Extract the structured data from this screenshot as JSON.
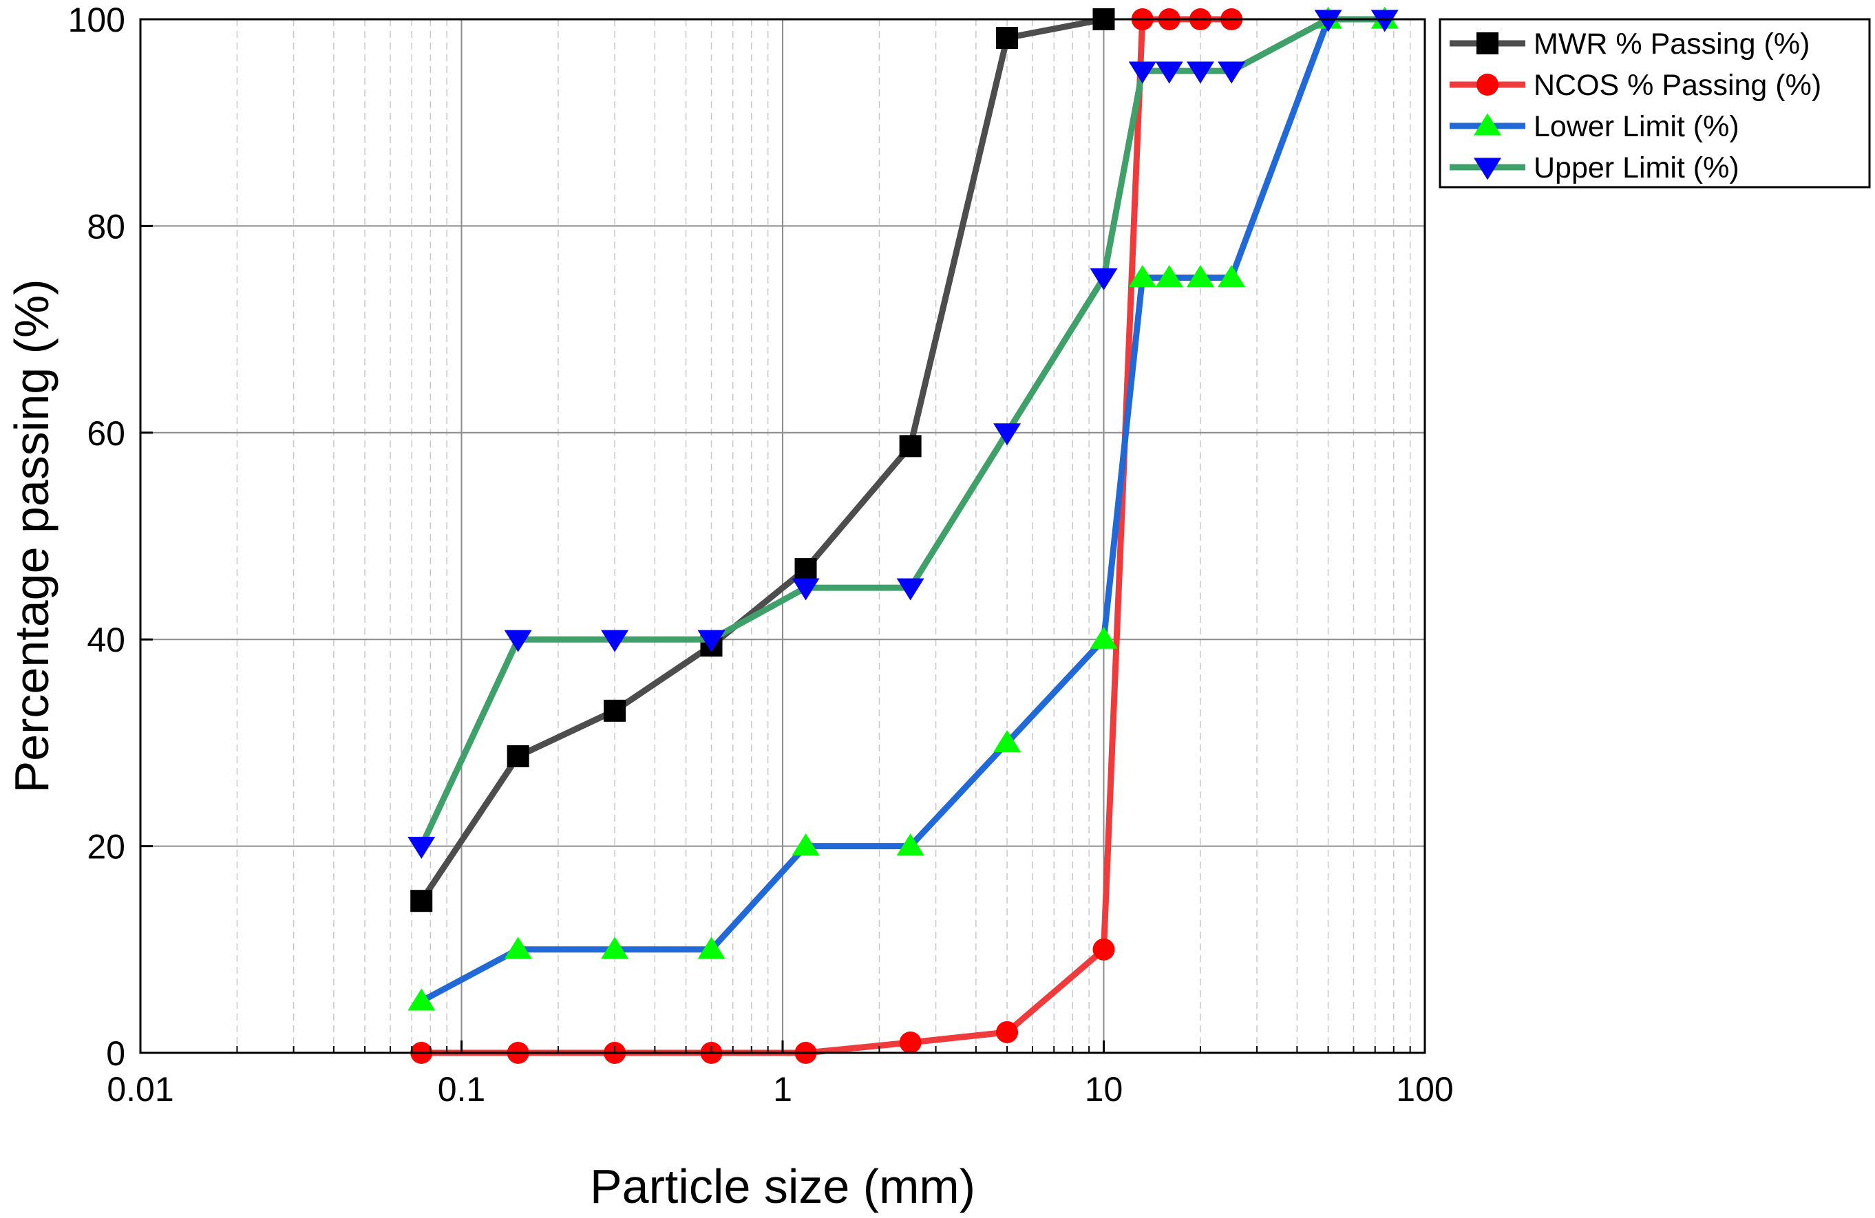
{
  "chart_data": {
    "type": "line",
    "title": "",
    "xlabel": "Particle size (mm)",
    "ylabel": "Percentage passing (%)",
    "xscale": "log",
    "xlim": [
      0.01,
      100
    ],
    "ylim": [
      0,
      100
    ],
    "grid": true,
    "legend_position": "outside-top-right",
    "x_ticks": [
      {
        "value": 0.01,
        "label": "0.01"
      },
      {
        "value": 0.1,
        "label": "0.1"
      },
      {
        "value": 1,
        "label": "1"
      },
      {
        "value": 10,
        "label": "10"
      },
      {
        "value": 100,
        "label": "100"
      }
    ],
    "y_ticks": [
      {
        "value": 0,
        "label": "0"
      },
      {
        "value": 20,
        "label": "20"
      },
      {
        "value": 40,
        "label": "40"
      },
      {
        "value": 60,
        "label": "60"
      },
      {
        "value": 80,
        "label": "80"
      },
      {
        "value": 100,
        "label": "100"
      }
    ],
    "series": [
      {
        "name": "MWR % Passing (%)",
        "color": "#4d4d4d",
        "marker": "square",
        "marker_color": "#000000",
        "x": [
          0.075,
          0.15,
          0.3,
          0.6,
          1.18,
          2.5,
          5,
          10
        ],
        "y": [
          14.7,
          28.7,
          33.1,
          39.4,
          46.8,
          58.7,
          98.2,
          100
        ]
      },
      {
        "name": "NCOS % Passing (%)",
        "color": "#ef3b3b",
        "marker": "circle",
        "marker_color": "#ff0000",
        "x": [
          0.075,
          0.15,
          0.3,
          0.6,
          1.18,
          2.5,
          5,
          10,
          13.2,
          16,
          20,
          25
        ],
        "y": [
          0,
          0,
          0,
          0,
          0,
          1.0,
          2.0,
          10.0,
          100,
          100,
          100,
          100
        ]
      },
      {
        "name": "Lower Limit (%)",
        "color": "#2169d6",
        "marker": "triangle-up",
        "marker_color": "#00ff00",
        "x": [
          0.075,
          0.15,
          0.3,
          0.6,
          1.18,
          2.5,
          5,
          10,
          13.2,
          16,
          20,
          25,
          50,
          75
        ],
        "y": [
          5,
          10,
          10,
          10,
          20,
          20,
          30,
          40,
          75,
          75,
          75,
          75,
          100,
          100
        ]
      },
      {
        "name": "Upper Limit (%)",
        "color": "#3fa06a",
        "marker": "triangle-down",
        "marker_color": "#0000ff",
        "x": [
          0.075,
          0.15,
          0.3,
          0.6,
          1.18,
          2.5,
          5,
          10,
          13.2,
          16,
          20,
          25,
          50,
          75
        ],
        "y": [
          20,
          40,
          40,
          40,
          45,
          45,
          60,
          75,
          95,
          95,
          95,
          95,
          100,
          100
        ]
      }
    ]
  }
}
